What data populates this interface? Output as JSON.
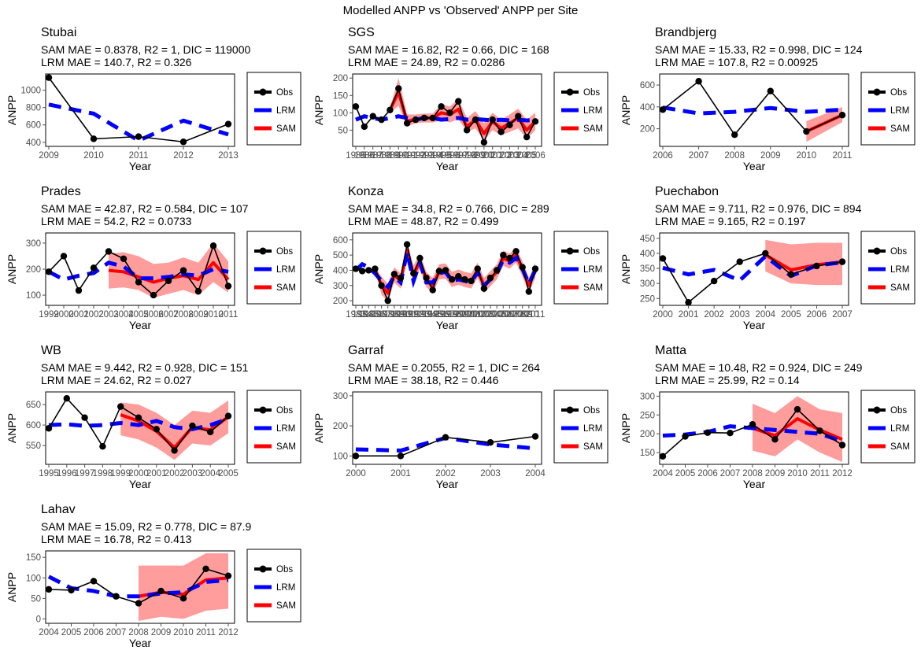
{
  "figure": {
    "title": "Modelled ANPP vs 'Observed' ANPP per Site",
    "xlabel": "Year",
    "ylabel": "ANPP",
    "legend": [
      "Obs",
      "LRM",
      "SAM"
    ],
    "colors": {
      "Obs": "#000000",
      "LRM": "#0000ff",
      "SAM": "#ff0000",
      "SAM_band": "#ff8c8c",
      "axis": "#4d4d4d"
    }
  },
  "chart_data": [
    {
      "type": "line",
      "site": "Stubai",
      "subtitle_sam": "SAM MAE = 0.8378, R2 = 1, DIC = 119000",
      "subtitle_lrm": "LRM MAE = 140.7, R2 = 0.326",
      "x": [
        2009,
        2010,
        2011,
        2012,
        2013
      ],
      "xticks": [
        "2009",
        "2010",
        "2011",
        "2012",
        "2013"
      ],
      "yticks": [
        400,
        600,
        800,
        1000
      ],
      "xlim": [
        2009,
        2013
      ],
      "ylim": [
        380,
        1160
      ],
      "obs": [
        1145,
        440,
        465,
        405,
        610
      ],
      "lrm": [
        835,
        730,
        420,
        650,
        490
      ],
      "sam": [
        1145,
        440,
        465,
        405,
        610
      ],
      "sam_lo": [
        1143,
        438,
        463,
        403,
        608
      ],
      "sam_hi": [
        1147,
        442,
        467,
        407,
        612
      ],
      "sam_start": 2009,
      "show_sam": false
    },
    {
      "type": "line",
      "site": "SGS",
      "subtitle_sam": "SAM MAE = 16.82, R2 = 0.66, DIC = 168",
      "subtitle_lrm": "LRM MAE = 24.89, R2 = 0.0286",
      "x": [
        1985,
        1986,
        1987,
        1988,
        1989,
        1990,
        1991,
        1992,
        1993,
        1994,
        1995,
        1996,
        1997,
        1998,
        1999,
        2000,
        2001,
        2002,
        2003,
        2004,
        2005,
        2006
      ],
      "xticks": [
        "1985",
        "1986",
        "1987",
        "1988",
        "1989",
        "1990",
        "1991",
        "1992",
        "1993",
        "1994",
        "1995",
        "1996",
        "1997",
        "1998",
        "1999",
        "2000",
        "2001",
        "2002",
        "2003",
        "2004",
        "2005",
        "2006"
      ],
      "yticks": [
        50,
        100,
        150,
        200
      ],
      "xlim": [
        1985,
        2006
      ],
      "ylim": [
        10,
        205
      ],
      "obs": [
        118,
        60,
        90,
        80,
        108,
        170,
        70,
        80,
        85,
        85,
        118,
        100,
        133,
        50,
        80,
        15,
        80,
        45,
        65,
        90,
        30,
        75
      ],
      "lrm": [
        80,
        90,
        85,
        80,
        85,
        90,
        85,
        80,
        85,
        85,
        80,
        82,
        85,
        80,
        82,
        80,
        78,
        80,
        78,
        80,
        78,
        80
      ],
      "sam": [
        118,
        60,
        90,
        80,
        108,
        160,
        75,
        82,
        85,
        85,
        100,
        95,
        110,
        60,
        80,
        40,
        75,
        55,
        70,
        85,
        50,
        75
      ],
      "sam_lo": [
        110,
        55,
        85,
        75,
        100,
        120,
        60,
        70,
        72,
        72,
        78,
        72,
        82,
        45,
        55,
        20,
        50,
        35,
        45,
        55,
        25,
        50
      ],
      "sam_hi": [
        125,
        65,
        95,
        85,
        115,
        200,
        95,
        95,
        98,
        98,
        125,
        118,
        140,
        85,
        105,
        70,
        100,
        80,
        95,
        112,
        80,
        100
      ],
      "sam_start": 1989,
      "show_sam": true
    },
    {
      "type": "line",
      "site": "Brandbjerg",
      "subtitle_sam": "SAM MAE = 15.33, R2 = 0.998, DIC = 124",
      "subtitle_lrm": "LRM MAE = 107.8, R2 = 0.00925",
      "x": [
        2006,
        2007,
        2008,
        2009,
        2010,
        2011
      ],
      "xticks": [
        "2006",
        "2007",
        "2008",
        "2009",
        "2010",
        "2011"
      ],
      "yticks": [
        200,
        400,
        600
      ],
      "xlim": [
        2006,
        2011
      ],
      "ylim": [
        60,
        680
      ],
      "obs": [
        375,
        635,
        145,
        545,
        175,
        325
      ],
      "lrm": [
        395,
        340,
        355,
        390,
        355,
        375
      ],
      "sam": [
        375,
        635,
        145,
        545,
        175,
        325
      ],
      "sam_lo": [
        370,
        630,
        140,
        540,
        80,
        260
      ],
      "sam_hi": [
        380,
        640,
        150,
        550,
        270,
        400
      ],
      "sam_start": 2010,
      "show_sam": true
    },
    {
      "type": "line",
      "site": "Prades",
      "subtitle_sam": "SAM MAE = 42.87, R2 = 0.584, DIC = 107",
      "subtitle_lrm": "LRM MAE = 54.2, R2 = 0.0733",
      "x": [
        1999,
        2000,
        2001,
        2002,
        2003,
        2004,
        2005,
        2006,
        2007,
        2008,
        2009,
        2010,
        2011
      ],
      "xticks": [
        "1999",
        "2000",
        "2001",
        "2002",
        "2003",
        "2004",
        "2005",
        "2006",
        "2007",
        "2008",
        "2009",
        "2010",
        "2011"
      ],
      "yticks": [
        100,
        200,
        300
      ],
      "xlim": [
        1999,
        2011
      ],
      "ylim": [
        70,
        330
      ],
      "obs": [
        190,
        250,
        118,
        205,
        268,
        240,
        150,
        100,
        155,
        195,
        115,
        290,
        135
      ],
      "lrm": [
        190,
        160,
        175,
        185,
        225,
        210,
        165,
        165,
        170,
        180,
        175,
        200,
        190
      ],
      "sam": [
        190,
        250,
        118,
        205,
        195,
        190,
        170,
        150,
        165,
        175,
        160,
        225,
        160
      ],
      "sam_lo": [
        190,
        250,
        118,
        205,
        125,
        130,
        120,
        90,
        105,
        120,
        100,
        150,
        110
      ],
      "sam_hi": [
        190,
        250,
        118,
        205,
        260,
        265,
        250,
        220,
        225,
        245,
        225,
        300,
        230
      ],
      "sam_start": 2003,
      "show_sam": true
    },
    {
      "type": "line",
      "site": "Konza",
      "subtitle_sam": "SAM MAE = 34.8, R2 = 0.766, DIC = 289",
      "subtitle_lrm": "LRM MAE = 48.87, R2 = 0.499",
      "x": [
        1983,
        1984,
        1985,
        1986,
        1987,
        1988,
        1989,
        1990,
        1991,
        1992,
        1993,
        1994,
        1995,
        1996,
        1997,
        1998,
        1999,
        2000,
        2001,
        2002,
        2003,
        2004,
        2005,
        2006,
        2007,
        2008,
        2009,
        2010,
        2011
      ],
      "xticks": [
        "1983",
        "1984",
        "1985",
        "1986",
        "1987",
        "1988",
        "1989",
        "1990",
        "1991",
        "1992",
        "1993",
        "1994",
        "1995",
        "1996",
        "1997",
        "1998",
        "1999",
        "2000",
        "2001",
        "2002",
        "2003",
        "2004",
        "2005",
        "2006",
        "2007",
        "2008",
        "2009",
        "2010",
        "2011"
      ],
      "yticks": [
        200,
        300,
        400,
        500,
        600
      ],
      "xlim": [
        1983,
        2011
      ],
      "ylim": [
        185,
        630
      ],
      "obs": [
        410,
        395,
        400,
        410,
        300,
        200,
        375,
        350,
        570,
        380,
        480,
        350,
        270,
        395,
        400,
        340,
        360,
        340,
        330,
        410,
        280,
        350,
        400,
        500,
        480,
        525,
        420,
        260,
        410
      ],
      "lrm": [
        400,
        440,
        420,
        380,
        330,
        290,
        360,
        320,
        520,
        330,
        450,
        320,
        320,
        380,
        390,
        330,
        340,
        330,
        320,
        390,
        300,
        340,
        380,
        470,
        450,
        480,
        410,
        310,
        400
      ],
      "sam": [
        410,
        395,
        400,
        410,
        300,
        250,
        370,
        330,
        530,
        370,
        460,
        340,
        300,
        390,
        395,
        340,
        355,
        340,
        330,
        400,
        300,
        345,
        390,
        480,
        460,
        500,
        410,
        300,
        400
      ],
      "sam_lo": [
        410,
        395,
        400,
        410,
        240,
        195,
        320,
        280,
        470,
        310,
        410,
        290,
        250,
        340,
        345,
        290,
        305,
        290,
        280,
        350,
        250,
        295,
        340,
        430,
        410,
        450,
        360,
        250,
        350
      ],
      "sam_hi": [
        410,
        395,
        400,
        410,
        360,
        310,
        420,
        380,
        590,
        430,
        510,
        390,
        350,
        440,
        445,
        390,
        405,
        390,
        380,
        450,
        350,
        395,
        440,
        530,
        510,
        550,
        460,
        350,
        450
      ],
      "sam_start": 1986,
      "show_sam": true
    },
    {
      "type": "line",
      "site": "Puechabon",
      "subtitle_sam": "SAM MAE = 9.711, R2 = 0.976, DIC = 894",
      "subtitle_lrm": "LRM MAE = 9.165, R2 = 0.197",
      "x": [
        2000,
        2001,
        2002,
        2003,
        2004,
        2005,
        2006,
        2007
      ],
      "xticks": [
        "2000",
        "2001",
        "2002",
        "2003",
        "2004",
        "2005",
        "2006",
        "2007"
      ],
      "yticks": [
        250,
        300,
        350,
        400,
        450
      ],
      "xlim": [
        2000,
        2007
      ],
      "ylim": [
        235,
        460
      ],
      "obs": [
        383,
        237,
        308,
        372,
        400,
        330,
        358,
        372
      ],
      "lrm": [
        352,
        330,
        345,
        310,
        390,
        325,
        360,
        370
      ],
      "sam": [
        383,
        237,
        308,
        372,
        395,
        345,
        362,
        372
      ],
      "sam_lo": [
        383,
        237,
        308,
        372,
        340,
        300,
        295,
        295
      ],
      "sam_hi": [
        383,
        237,
        308,
        372,
        445,
        430,
        435,
        435
      ],
      "sam_start": 2004,
      "show_sam": true
    },
    {
      "type": "line",
      "site": "WB",
      "subtitle_sam": "SAM MAE = 9.442, R2 = 0.928, DIC = 151",
      "subtitle_lrm": "LRM MAE = 24.62, R2 = 0.027",
      "x": [
        1995,
        1996,
        1997,
        1998,
        1999,
        2000,
        2001,
        2002,
        2003,
        2004,
        2005
      ],
      "xticks": [
        "1995",
        "1996",
        "1997",
        "1998",
        "1999",
        "2000",
        "2001",
        "2002",
        "2003",
        "2004",
        "2005"
      ],
      "yticks": [
        550,
        600,
        650
      ],
      "xlim": [
        1995,
        2005
      ],
      "ylim": [
        510,
        675
      ],
      "obs": [
        592,
        665,
        618,
        548,
        645,
        618,
        590,
        538,
        598,
        583,
        622
      ],
      "lrm": [
        600,
        602,
        598,
        600,
        605,
        600,
        610,
        595,
        590,
        600,
        615
      ],
      "sam": [
        592,
        665,
        618,
        548,
        625,
        610,
        585,
        545,
        595,
        588,
        620
      ],
      "sam_lo": [
        592,
        665,
        618,
        548,
        575,
        565,
        545,
        515,
        555,
        550,
        580
      ],
      "sam_hi": [
        592,
        665,
        618,
        548,
        655,
        650,
        630,
        600,
        635,
        630,
        660
      ],
      "sam_start": 1999,
      "show_sam": true
    },
    {
      "type": "line",
      "site": "Garraf",
      "subtitle_sam": "SAM MAE = 0.2055, R2 = 1, DIC = 264",
      "subtitle_lrm": "LRM MAE = 38.18, R2 = 0.446",
      "x": [
        2000,
        2001,
        2002,
        2003,
        2004
      ],
      "xticks": [
        "2000",
        "2001",
        "2002",
        "2003",
        "2004"
      ],
      "yticks": [
        100,
        200,
        300
      ],
      "xlim": [
        2000,
        2004
      ],
      "ylim": [
        80,
        305
      ],
      "obs": [
        100,
        100,
        162,
        145,
        165
      ],
      "lrm": [
        122,
        118,
        160,
        138,
        125
      ],
      "sam": [
        100,
        100,
        162,
        145,
        165
      ],
      "sam_lo": [
        99,
        99,
        161,
        144,
        164
      ],
      "sam_hi": [
        101,
        101,
        163,
        146,
        166
      ],
      "sam_start": 2000,
      "show_sam": false
    },
    {
      "type": "line",
      "site": "Matta",
      "subtitle_sam": "SAM MAE = 10.48, R2 = 0.924, DIC = 249",
      "subtitle_lrm": "LRM MAE = 25.99, R2 = 0.14",
      "x": [
        2004,
        2005,
        2006,
        2007,
        2008,
        2009,
        2010,
        2011,
        2012
      ],
      "xticks": [
        "2004",
        "2005",
        "2006",
        "2007",
        "2008",
        "2009",
        "2010",
        "2011",
        "2012"
      ],
      "yticks": [
        150,
        200,
        250,
        300
      ],
      "xlim": [
        2004,
        2012
      ],
      "ylim": [
        125,
        305
      ],
      "obs": [
        140,
        193,
        203,
        202,
        225,
        185,
        265,
        208,
        170
      ],
      "lrm": [
        195,
        198,
        205,
        220,
        215,
        210,
        205,
        200,
        180
      ],
      "sam": [
        140,
        193,
        203,
        202,
        215,
        195,
        240,
        210,
        185
      ],
      "sam_lo": [
        140,
        193,
        203,
        202,
        155,
        140,
        185,
        150,
        125
      ],
      "sam_hi": [
        140,
        193,
        203,
        202,
        280,
        255,
        300,
        265,
        255
      ],
      "sam_start": 2008,
      "show_sam": true
    },
    {
      "type": "line",
      "site": "Lahav",
      "subtitle_sam": "SAM MAE = 15.09, R2 = 0.778, DIC = 87.9",
      "subtitle_lrm": "LRM MAE = 16.78, R2 = 0.413",
      "x": [
        2004,
        2005,
        2006,
        2007,
        2008,
        2009,
        2010,
        2011,
        2012
      ],
      "xticks": [
        "2004",
        "2005",
        "2006",
        "2007",
        "2008",
        "2009",
        "2010",
        "2011",
        "2012"
      ],
      "yticks": [
        0,
        50,
        100,
        150
      ],
      "xlim": [
        2004,
        2012
      ],
      "ylim": [
        -5,
        160
      ],
      "obs": [
        72,
        70,
        92,
        55,
        38,
        68,
        50,
        122,
        105
      ],
      "lrm": [
        103,
        75,
        68,
        55,
        55,
        62,
        65,
        90,
        95
      ],
      "sam": [
        72,
        70,
        92,
        55,
        55,
        65,
        60,
        95,
        100
      ],
      "sam_lo": [
        72,
        70,
        92,
        55,
        -5,
        5,
        0,
        20,
        25
      ],
      "sam_hi": [
        72,
        70,
        92,
        55,
        130,
        130,
        130,
        160,
        160
      ],
      "sam_start": 2008,
      "show_sam": true
    }
  ]
}
